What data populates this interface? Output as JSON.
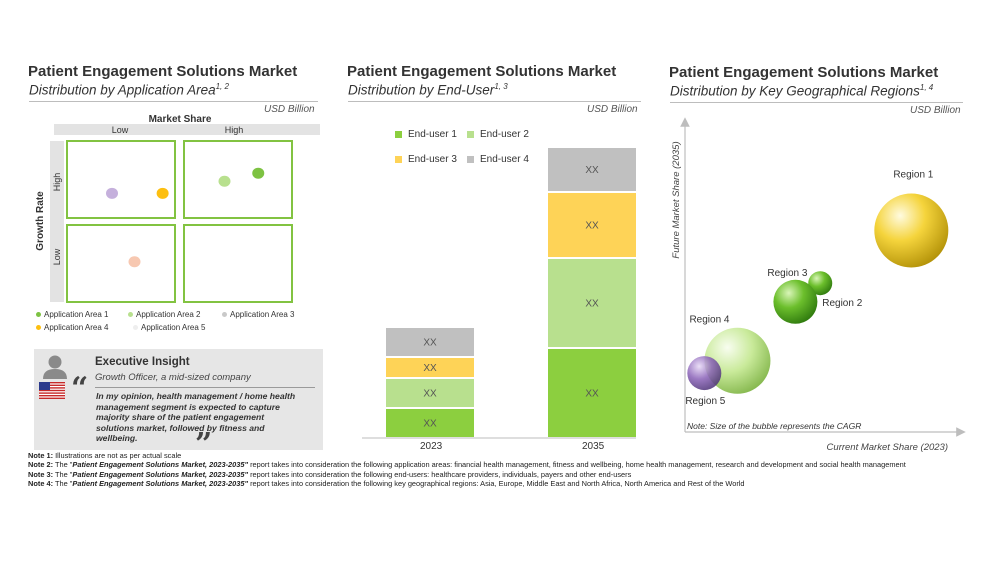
{
  "colors": {
    "green_dark": "#8ccf3f",
    "green_light": "#b8e08e",
    "yellow": "#fed357",
    "gray": "#c0c0c0",
    "lavender": "#c5b0dc",
    "peach": "#f7c8b1",
    "matrix_border": "#82c341",
    "insight_bg": "#e6e6e6"
  },
  "panel1": {
    "title": "Patient Engagement Solutions Market",
    "subtitle": "Distribution by Application Area",
    "subtitle_sup": "1, 2",
    "unit": "USD Billion",
    "x_axis_title": "Market Share",
    "x_low": "Low",
    "x_high": "High",
    "y_axis_title": "Growth Rate",
    "y_high": "High",
    "y_low": "Low",
    "legend": [
      "Application Area 1",
      "Application Area 2",
      "Application Area 3",
      "Application Area 4",
      "Application Area 5"
    ],
    "insight": {
      "heading": "Executive Insight",
      "author": "Growth Officer, a mid-sized company",
      "quote": "In my opinion, health management / home health management segment is expected to capture majority share of the patient engagement solutions market, followed by fitness and wellbeing."
    }
  },
  "panel2": {
    "title": "Patient Engagement Solutions Market",
    "subtitle": "Distribution by End-User",
    "subtitle_sup": "1, 3",
    "unit": "USD Billion"
  },
  "panel3": {
    "title": "Patient Engagement Solutions Market",
    "subtitle": "Distribution by Key Geographical Regions",
    "subtitle_sup": "1, 4",
    "unit": "USD Billion",
    "y_axis_title": "Future Market Share (2035)",
    "x_axis_title": "Current Market Share (2023)",
    "note": "Note: Size of the bubble represents the CAGR"
  },
  "notes": {
    "n1_label": "Note 1:",
    "n1_text": " Illustrations are not as per actual scale",
    "n2_label": "Note 2:",
    "n2_pre": " The \"",
    "n2_report": "Patient Engagement Solutions Market, 2023-2035\"",
    "n2_text": " report takes into consideration the following application areas: financial health management, fitness and wellbeing, home health management, research and development and social health management",
    "n3_label": "Note 3:",
    "n3_pre": " The \"",
    "n3_report": "Patient Engagement Solutions Market, 2023-2035\"",
    "n3_text": " report takes into consideration the following end-users: healthcare providers, individuals, payers and other end-users",
    "n4_label": "Note 4:",
    "n4_pre": " The \"",
    "n4_report": "Patient Engagement Solutions Market, 2023-2035\"",
    "n4_text": " report takes into consideration the following key geographical regions: Asia, Europe, Middle East and North Africa, North America and Rest of the World"
  },
  "chart_data": [
    {
      "type": "scatter",
      "title": "Distribution by Application Area",
      "xlabel": "Market Share",
      "ylabel": "Growth Rate",
      "xlim": [
        0,
        2
      ],
      "ylim": [
        0,
        2
      ],
      "points": [
        {
          "name": "Application Area 1",
          "x": 1.7,
          "y": 1.6,
          "color": "#7dc242"
        },
        {
          "name": "Application Area 2",
          "x": 1.4,
          "y": 1.5,
          "color": "#b8e08e"
        },
        {
          "name": "Application Area 3",
          "x": 0.4,
          "y": 1.35,
          "color": "#c5b0dc"
        },
        {
          "name": "Application Area4",
          "x": 0.85,
          "y": 1.35,
          "color": "#fdbf10"
        },
        {
          "name": "Application Area 5",
          "x": 0.6,
          "y": 0.5,
          "color": "#f7c8b1"
        }
      ]
    },
    {
      "type": "bar",
      "stacked": true,
      "title": "Distribution by End-User",
      "categories": [
        "2023",
        "2035"
      ],
      "series": [
        {
          "name": "End-user 1",
          "values": [
            1,
            3
          ],
          "labels": [
            "XX",
            "XX"
          ],
          "color": "#8ccf3f"
        },
        {
          "name": "End-user 2",
          "values": [
            1,
            3
          ],
          "labels": [
            "XX",
            "XX"
          ],
          "color": "#b8e08e"
        },
        {
          "name": "End-user 3",
          "values": [
            0.7,
            2.2
          ],
          "labels": [
            "XX",
            "XX"
          ],
          "color": "#fed357"
        },
        {
          "name": "End-user 4",
          "values": [
            1,
            1.5
          ],
          "labels": [
            "XX",
            "XX"
          ],
          "color": "#c0c0c0"
        }
      ],
      "ylim": [
        0,
        10
      ]
    },
    {
      "type": "scatter",
      "subtype": "bubble",
      "title": "Distribution by Key Geographical Regions",
      "xlabel": "Current Market Share (2023)",
      "ylabel": "Future Market Share (2035)",
      "xlim": [
        0,
        10
      ],
      "ylim": [
        0,
        10
      ],
      "points": [
        {
          "name": "Region 1",
          "x": 8.2,
          "y": 6.5,
          "size": 37,
          "color": "#f5d43c"
        },
        {
          "name": "Region 2",
          "x": 4.9,
          "y": 4.8,
          "size": 12,
          "color": "#6cbf2c"
        },
        {
          "name": "Region 3",
          "x": 4.0,
          "y": 4.2,
          "size": 22,
          "color": "#6cbf2c"
        },
        {
          "name": "Region 4",
          "x": 1.9,
          "y": 2.3,
          "size": 33,
          "color": "#c9ea9a"
        },
        {
          "name": "Region 5",
          "x": 0.7,
          "y": 1.9,
          "size": 17,
          "color": "#8a62b8"
        }
      ]
    }
  ]
}
